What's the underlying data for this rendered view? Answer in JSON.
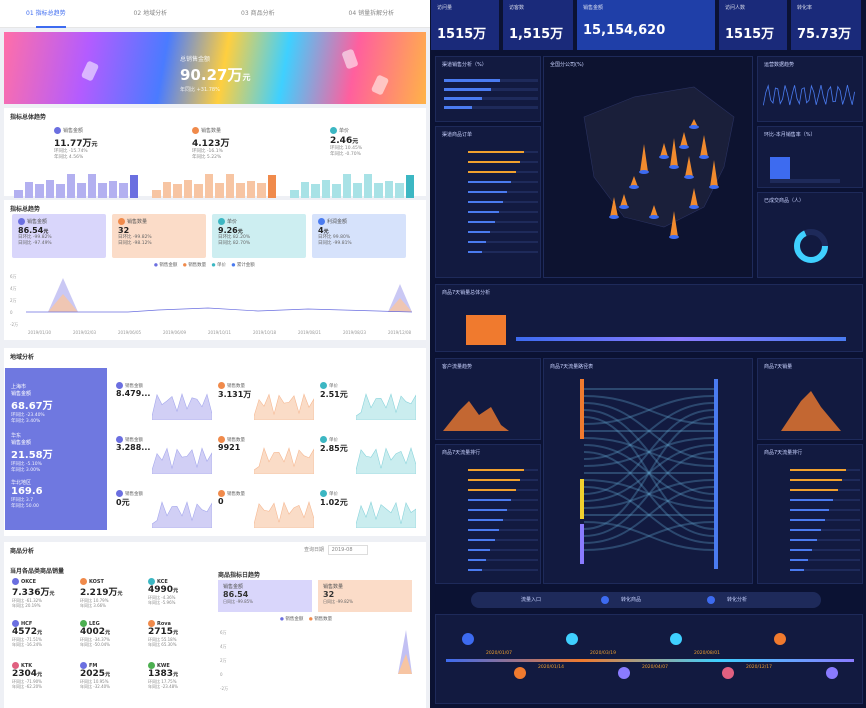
{
  "tabs": [
    {
      "num": "01",
      "label": "指标总趋势"
    },
    {
      "num": "02",
      "label": "地域分析"
    },
    {
      "num": "03",
      "label": "商品分析"
    },
    {
      "num": "04",
      "label": "销量拆解分析"
    }
  ],
  "hero": {
    "label": "总销售金额",
    "value": "90.27万",
    "unit": "元",
    "sub": "年同比 +31.78%"
  },
  "indicator": {
    "title": "指标总体趋势",
    "items": [
      {
        "label": "销售金额",
        "value": "11.77万",
        "unit": "元",
        "r1": "环同比 -15.74%",
        "r2": "年同比 4.56%",
        "color": "#6b6fe0",
        "bar": "#b3b0f0"
      },
      {
        "label": "销售数量",
        "value": "4.123万",
        "unit": "",
        "r1": "环同比 -16.1%",
        "r2": "年同比 5.22%",
        "color": "#f08a4b",
        "bar": "#f7c5a3"
      },
      {
        "label": "单价",
        "value": "2.46",
        "unit": "元",
        "r1": "环同比 10.45%",
        "r2": "年同比 -0.70%",
        "color": "#3cb7c3",
        "bar": "#a8e2e6"
      }
    ]
  },
  "trend": {
    "title": "指标总趋势",
    "cards": [
      {
        "label": "销售金额",
        "value": "86.54",
        "unit": "元",
        "r1": "日环比 -99.82%",
        "r2": "日同比 -97.49%",
        "bg": "#d9d6fb",
        "ic": "#6b6fe0"
      },
      {
        "label": "销售数量",
        "value": "32",
        "unit": "",
        "r1": "日环比 -99.82%",
        "r2": "日同比 -98.12%",
        "bg": "#fbdcc8",
        "ic": "#f08a4b"
      },
      {
        "label": "单价",
        "value": "9.26",
        "unit": "元",
        "r1": "日环比 82.20%",
        "r2": "日同比 82.70%",
        "bg": "#cdeef1",
        "ic": "#3cb7c3"
      },
      {
        "label": "利润金额",
        "value": "4",
        "unit": "元",
        "r1": "日环比 99.80%",
        "r2": "日同比 -99.81%",
        "bg": "#d6e2fb",
        "ic": "#4a7bf0"
      }
    ],
    "legend": [
      "销售金额",
      "销售数量",
      "单价",
      "累计金额"
    ],
    "yticks": [
      "6万",
      "4万",
      "2万",
      "0",
      "-2万"
    ],
    "xticks": [
      "2019/01/30",
      "2019/02/03",
      "2019/06/05",
      "2019/06/09",
      "2019/10/11",
      "2019/10/18",
      "2019/08/21",
      "2019/08/23",
      "2019/12/08"
    ]
  },
  "region": {
    "title": "地域分析",
    "card": [
      {
        "label": "上海市",
        "sub": "销售金额",
        "value": "68.67万",
        "r1": "环同比 -23.40%",
        "r2": "年同比 3.40%"
      },
      {
        "label": "华东",
        "sub": "销售金额",
        "value": "21.58万",
        "r1": "环同比 -5.10%",
        "r2": "年同比 3.00%"
      },
      {
        "label": "华北地区",
        "sub": "销售金额",
        "value": "169.6",
        "r1": "环同比 3.7",
        "r2": "年同比 50.00"
      }
    ],
    "rows": [
      [
        {
          "label": "销售金额",
          "value": "8.479..."
        },
        {
          "label": "销售数量",
          "value": "3.131万"
        },
        {
          "label": "单价",
          "value": "2.51元"
        }
      ],
      [
        {
          "label": "销售金额",
          "value": "3.288..."
        },
        {
          "label": "销售数量",
          "value": "9921"
        },
        {
          "label": "单价",
          "value": "2.85元"
        }
      ],
      [
        {
          "label": "销售金额",
          "value": "0元"
        },
        {
          "label": "销售数量",
          "value": "0"
        },
        {
          "label": "单价",
          "value": "1.02元"
        }
      ]
    ]
  },
  "product": {
    "title": "商品分析",
    "subtitle": "当月各品类商品销量",
    "date_label": "查询日期",
    "date": "2019-08",
    "items": [
      {
        "name": "OKCE",
        "value": "7.336万",
        "unit": "元",
        "r1": "环同比 -61.32%",
        "r2": "年同比 20.19%",
        "color": "#6b6fe0"
      },
      {
        "name": "KOST",
        "value": "2.219万",
        "unit": "元",
        "r1": "环同比 10.79%",
        "r2": "年同比 3.66%",
        "color": "#f08a4b"
      },
      {
        "name": "KCE",
        "value": "4990",
        "unit": "元",
        "r1": "环同比 -4.36%",
        "r2": "年同比 -5.96%",
        "color": "#3cb7c3"
      },
      {
        "name": "HCF",
        "value": "4572",
        "unit": "元",
        "r1": "环同比 -71.51%",
        "r2": "年同比 -16.24%",
        "color": "#6b6fe0"
      },
      {
        "name": "LEG",
        "value": "4002",
        "unit": "元",
        "r1": "环同比 -34.37%",
        "r2": "年同比 -50.04%",
        "color": "#4caf50"
      },
      {
        "name": "Rova",
        "value": "2715",
        "unit": "元",
        "r1": "环同比 55.18%",
        "r2": "年同比 65.30%",
        "color": "#f08a4b"
      },
      {
        "name": "KTK",
        "value": "2304",
        "unit": "元",
        "r1": "环同比 -71.90%",
        "r2": "年同比 -62.20%",
        "color": "#e06080"
      },
      {
        "name": "FM",
        "value": "2025",
        "unit": "元",
        "r1": "环同比 10.95%",
        "r2": "年同比 -32.40%",
        "color": "#6b6fe0"
      },
      {
        "name": "KWE",
        "value": "1383",
        "unit": "元",
        "r1": "环同比 17.75%",
        "r2": "年同比 -23.48%",
        "color": "#4caf50"
      }
    ],
    "trend_title": "商品指标日趋势",
    "tcards": [
      {
        "label": "销售金额",
        "value": "86.54",
        "r": "日同比 -99.85%"
      },
      {
        "label": "销售数量",
        "value": "32",
        "r": "日同比 -99.82%"
      }
    ],
    "legend": [
      "销售金额",
      "销售数量"
    ],
    "yticks": [
      "6万",
      "4万",
      "2万",
      "0",
      "-2万"
    ]
  },
  "right": {
    "kpis": [
      {
        "label": "访问量",
        "value": "1515万"
      },
      {
        "label": "访客数",
        "value": "1,515万"
      },
      {
        "label": "销售金额",
        "value": "15,154,620"
      },
      {
        "label": "访问人数",
        "value": "1515万"
      },
      {
        "label": "转化率",
        "value": "75.73万"
      }
    ],
    "panel_titles": [
      "渠道销售分析（%）",
      "全国分公司(%)",
      "运营数据趋势",
      "渠道商品订单",
      "环比-本月销售率（%）",
      "已成交商品（人）",
      "商品7天销量总体分析",
      "客户流量趋势",
      "商品7天流量路径表",
      "商品7天销量",
      "商品7天流量排行"
    ],
    "step_labels": [
      "流量入口",
      "转化商品",
      "转化分析"
    ],
    "dates": [
      "2020/01/07",
      "2020/01/14",
      "2020/03/19",
      "2020/04/07",
      "2020/08/01",
      "2020/12/17"
    ]
  }
}
